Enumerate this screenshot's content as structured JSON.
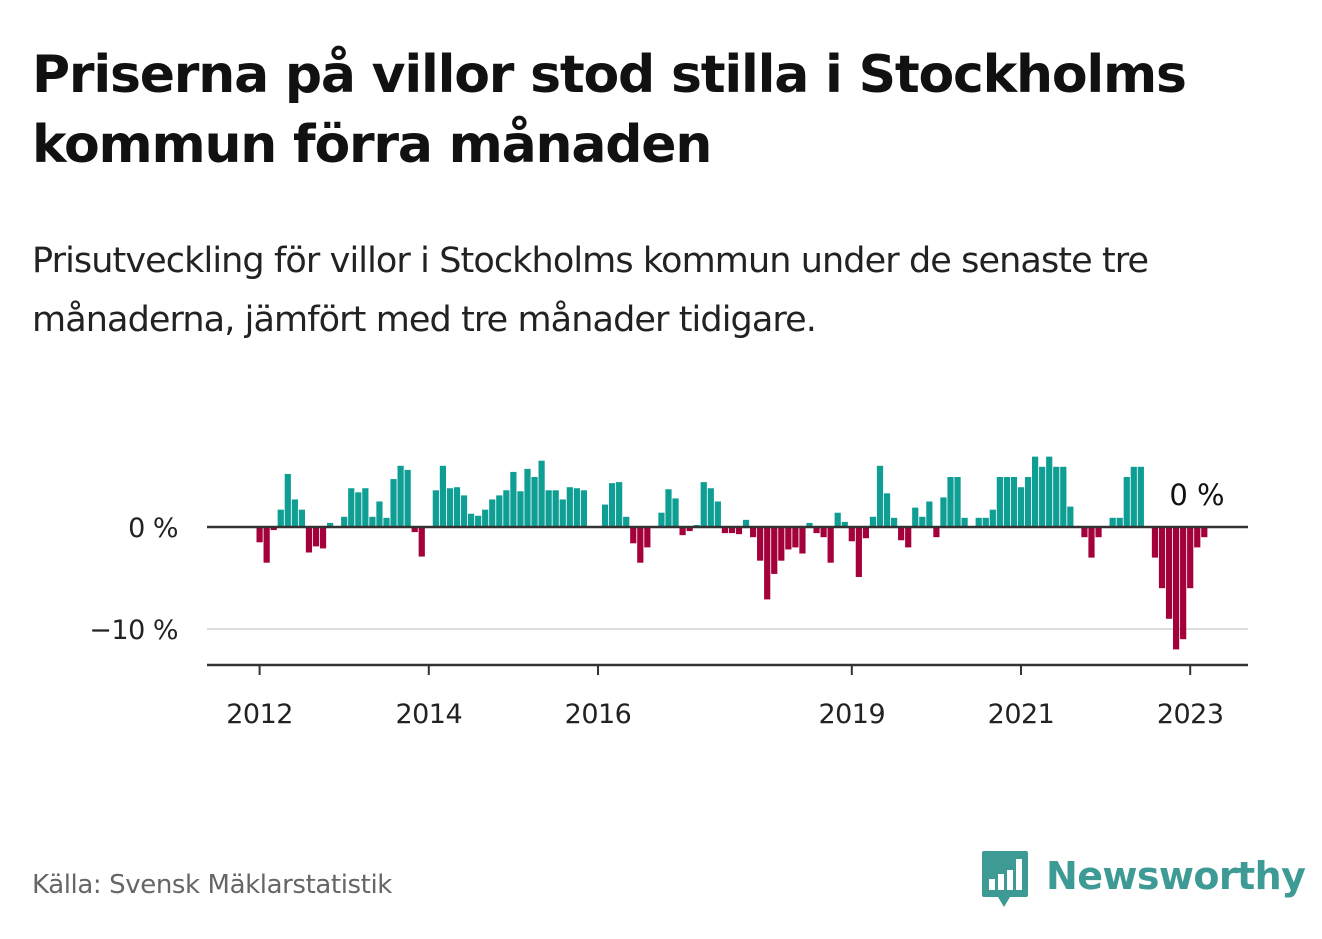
{
  "header": {
    "title": "Priserna på villor stod stilla i Stockholms kommun förra månaden",
    "subtitle": "Prisutveckling för villor i Stockholms kommun under de senaste tre månaderna, jämfört med tre månader tidigare."
  },
  "footer": {
    "source": "Källa: Svensk Mäklarstatistik",
    "brand": "Newsworthy",
    "brand_icon": "bar-chart-speech-bubble-icon"
  },
  "colors": {
    "positive": "#0e9e93",
    "negative": "#a3003c",
    "axis": "#333333",
    "grid": "#dddddd",
    "brand": "#3e9a95"
  },
  "chart_data": {
    "type": "bar",
    "title": "",
    "xlabel": "",
    "ylabel": "",
    "ylim": [
      -13.5,
      7.5
    ],
    "start": "2012-01",
    "yticks": [
      0,
      -10
    ],
    "ytick_labels": [
      "0 %",
      "−10 %"
    ],
    "xticks": [
      2012,
      2014,
      2016,
      2019,
      2021,
      2023
    ],
    "last_value_label": "0 %",
    "series": [
      {
        "values": [
          -1.5,
          -3.5,
          -0.3,
          1.7,
          5.2,
          2.7,
          1.7,
          -2.5,
          -1.9,
          -2.1,
          0.4,
          0.0,
          1.0,
          3.8,
          3.4,
          3.8,
          1.0,
          2.5,
          0.9,
          4.7,
          6.0,
          5.6,
          -0.5,
          -2.9,
          0.0,
          3.6,
          6.0,
          3.8,
          3.9,
          3.1,
          1.3,
          1.1,
          1.7,
          2.7,
          3.1,
          3.6,
          5.4,
          3.5,
          5.7,
          4.9,
          6.5,
          3.6,
          3.6,
          2.7,
          3.9,
          3.8,
          3.6,
          0.0,
          0.0,
          2.2,
          4.3,
          4.4,
          1.0,
          -1.6,
          -3.5,
          -2.0,
          0.0,
          1.4,
          3.7,
          2.8,
          -0.8,
          -0.4,
          0.2,
          4.4,
          3.8,
          2.5,
          -0.6,
          -0.6,
          -0.7,
          0.7,
          -1.0,
          -3.3,
          -7.1,
          -4.6,
          -3.3,
          -2.2,
          -2.0,
          -2.6,
          0.4,
          -0.6,
          -1.0,
          -3.5,
          1.4,
          0.5,
          -1.4,
          -4.9,
          -1.1,
          1.0,
          6.0,
          3.3,
          0.9,
          -1.3,
          -2.0,
          1.9,
          1.0,
          2.5,
          -1.0,
          2.9,
          4.9,
          4.9,
          0.9,
          0.0,
          0.9,
          0.9,
          1.7,
          4.9,
          4.9,
          4.9,
          3.9,
          4.9,
          6.9,
          5.9,
          6.9,
          5.9,
          5.9,
          2.0,
          0.0,
          -1.0,
          -3.0,
          -1.0,
          0.0,
          0.9,
          0.9,
          4.9,
          5.9,
          5.9,
          0.0,
          -3.0,
          -6.0,
          -9.0,
          -12.0,
          -11.0,
          -6.0,
          -2.0,
          -1.0,
          0.0
        ]
      }
    ]
  }
}
